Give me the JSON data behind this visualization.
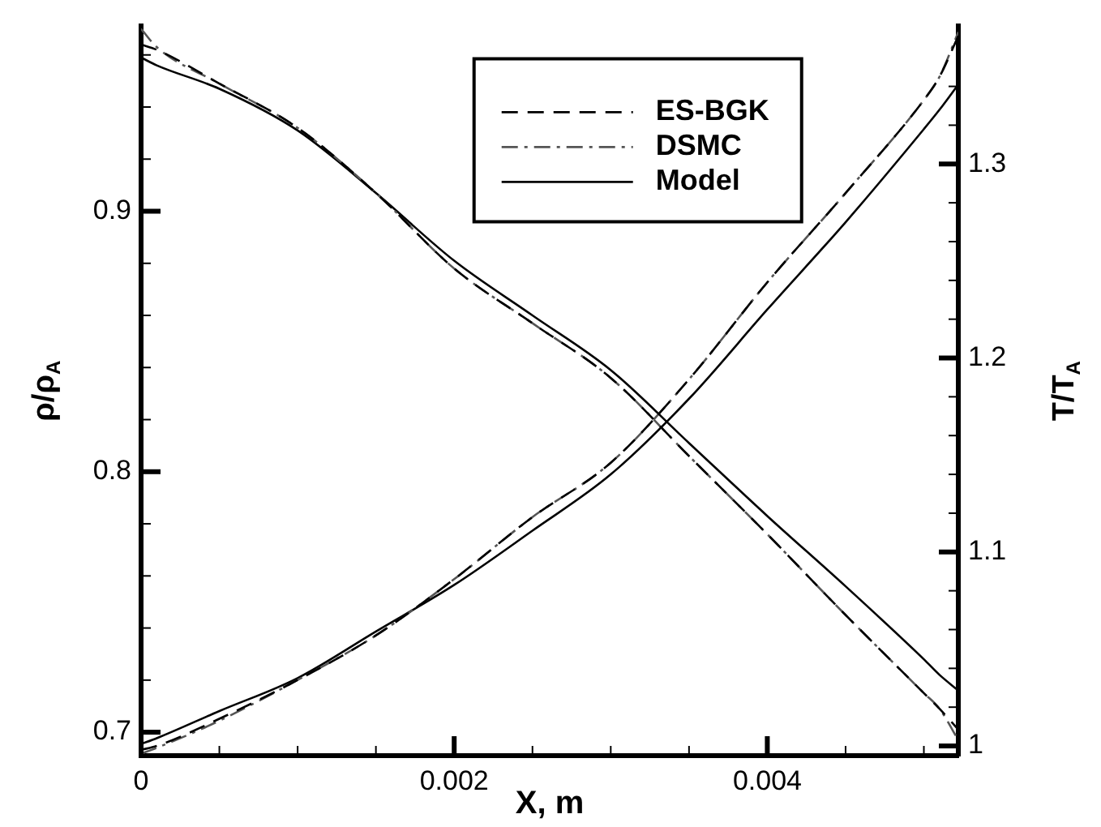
{
  "chart_data": {
    "type": "line",
    "xlabel": "X, m",
    "ylabel": "ρ/ρ$_{A}$",
    "y2label": "T/T$_{A}$",
    "xlim": [
      0,
      0.00522
    ],
    "xticks": [
      0,
      {
        "value": 0.0005,
        "label": null
      },
      {
        "value": 0.001,
        "label": null
      },
      {
        "value": 0.0015,
        "label": null
      },
      0.002,
      {
        "value": 0.0025,
        "label": null
      },
      {
        "value": 0.003,
        "label": null
      },
      {
        "value": 0.0035,
        "label": null
      },
      0.004,
      {
        "value": 0.0045,
        "label": null
      },
      {
        "value": 0.005,
        "label": null
      }
    ],
    "ylim": [
      0.691,
      0.971
    ],
    "yticks": [
      0.7,
      {
        "value": 0.72,
        "label": null
      },
      {
        "value": 0.74,
        "label": null
      },
      {
        "value": 0.76,
        "label": null
      },
      {
        "value": 0.78,
        "label": null
      },
      0.8,
      {
        "value": 0.82,
        "label": null
      },
      {
        "value": 0.84,
        "label": null
      },
      {
        "value": 0.86,
        "label": null
      },
      {
        "value": 0.88,
        "label": null
      },
      0.9,
      {
        "value": 0.92,
        "label": null
      },
      {
        "value": 0.94,
        "label": null
      },
      {
        "value": 0.96,
        "label": null
      }
    ],
    "y2lim": [
      0.995,
      1.371
    ],
    "y2ticks": [
      1,
      {
        "value": 1.02,
        "label": null
      },
      {
        "value": 1.04,
        "label": null
      },
      {
        "value": 1.06,
        "label": null
      },
      {
        "value": 1.08,
        "label": null
      },
      1.1,
      {
        "value": 1.12,
        "label": null
      },
      {
        "value": 1.14,
        "label": null
      },
      {
        "value": 1.16,
        "label": null
      },
      {
        "value": 1.18,
        "label": null
      },
      1.2,
      {
        "value": 1.22,
        "label": null
      },
      {
        "value": 1.24,
        "label": null
      },
      {
        "value": 1.26,
        "label": null
      },
      {
        "value": 1.28,
        "label": null
      },
      1.3,
      {
        "value": 1.32,
        "label": null
      },
      {
        "value": 1.34,
        "label": null
      }
    ],
    "x": [
      0,
      0.0001,
      0.0005,
      0.001,
      0.0015,
      0.002,
      0.0025,
      0.003,
      0.0035,
      0.004,
      0.0045,
      0.005,
      0.0051,
      0.00522
    ],
    "legend": "top",
    "grid": false,
    "marker": "none",
    "series": [
      {
        "name": "ES-BGK",
        "color": "#000000",
        "line_style": "dashed",
        "values": [
          0.964,
          0.962,
          0.949,
          0.932,
          0.907,
          0.878,
          0.857,
          0.836,
          0.806,
          0.776,
          0.745,
          0.715,
          0.709,
          0.701
        ]
      },
      {
        "name": "DSMC",
        "color": "#555555",
        "line_style": "dashdot",
        "values": [
          0.97,
          0.963,
          0.949,
          0.932,
          0.907,
          0.878,
          0.857,
          0.836,
          0.806,
          0.776,
          0.745,
          0.715,
          0.709,
          0.697
        ]
      },
      {
        "name": "Model",
        "color": "#000000",
        "line_style": "solid",
        "values": [
          0.959,
          0.956,
          0.947,
          0.931,
          0.907,
          0.881,
          0.86,
          0.839,
          0.811,
          0.783,
          0.756,
          0.728,
          0.722,
          0.716
        ]
      },
      {
        "color": "#000000",
        "line_style": "dashed",
        "axis": "y2",
        "values": [
          0.998,
          1.0,
          1.014,
          1.034,
          1.057,
          1.086,
          1.118,
          1.146,
          1.189,
          1.239,
          1.285,
          1.333,
          1.345,
          1.366
        ]
      },
      {
        "color": "#555555",
        "line_style": "dashdot",
        "axis": "y2",
        "values": [
          0.996,
          0.999,
          1.013,
          1.034,
          1.057,
          1.086,
          1.118,
          1.146,
          1.189,
          1.239,
          1.285,
          1.333,
          1.345,
          1.368
        ]
      },
      {
        "color": "#000000",
        "line_style": "solid",
        "axis": "y2",
        "values": [
          1.001,
          1.004,
          1.018,
          1.035,
          1.059,
          1.083,
          1.111,
          1.14,
          1.179,
          1.225,
          1.27,
          1.318,
          1.328,
          1.341
        ]
      }
    ]
  }
}
